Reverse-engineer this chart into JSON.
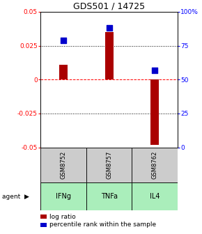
{
  "title": "GDS501 / 14725",
  "samples": [
    "GSM8752",
    "GSM8757",
    "GSM8762"
  ],
  "agents": [
    "IFNg",
    "TNFa",
    "IL4"
  ],
  "log_ratio": [
    0.011,
    0.035,
    -0.048
  ],
  "percentile_rank": [
    0.79,
    0.88,
    0.57
  ],
  "bar_color": "#aa0000",
  "dot_color": "#0000cc",
  "ylim_left": [
    -0.05,
    0.05
  ],
  "ylim_right": [
    0.0,
    1.0
  ],
  "yticks_left": [
    -0.05,
    -0.025,
    0.0,
    0.025,
    0.05
  ],
  "ytick_labels_left": [
    "-0.05",
    "-0.025",
    "0",
    "0.025",
    "0.05"
  ],
  "yticks_right": [
    0.0,
    0.25,
    0.5,
    0.75,
    1.0
  ],
  "ytick_labels_right": [
    "0",
    "25",
    "50",
    "75",
    "100%"
  ],
  "hline_dotted": [
    0.025,
    -0.025
  ],
  "hline_dashed_red": 0.0,
  "sample_bg": "#cccccc",
  "agent_bg": "#aaeebb",
  "agent_bg_right": "#77dd77",
  "legend_log_label": "log ratio",
  "legend_pct_label": "percentile rank within the sample",
  "bar_width": 0.18,
  "dot_size": 40,
  "title_fontsize": 9,
  "tick_fontsize": 6.5,
  "sample_fontsize": 6,
  "agent_fontsize": 7
}
